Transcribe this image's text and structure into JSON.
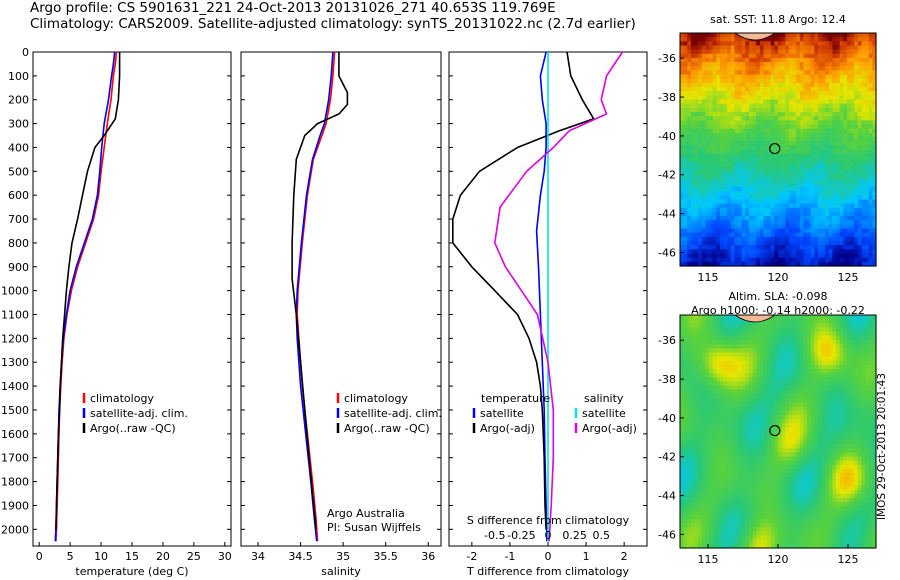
{
  "header": {
    "line1": "Argo profile: CS 5901631_221 24-Oct-2013 20131026_271 40.653S 119.769E",
    "line2": "Climatology: CARS2009. Satellite-adjusted climatology: synTS_20131022.nc (2.7d earlier)"
  },
  "colors": {
    "climatology": "#ff0000",
    "satellite": "#0000ff",
    "argo": "#000000",
    "sat_salinity": "#00e5e5",
    "argo_salinity": "#e000e0"
  },
  "chart_data": [
    {
      "type": "line",
      "panel": "temperature",
      "xlabel": "temperature (deg C)",
      "xlim": [
        -1,
        31
      ],
      "xticks": [
        0,
        5,
        10,
        15,
        20,
        25,
        30
      ],
      "ylim": [
        2070,
        0
      ],
      "yticks": [
        0,
        100,
        200,
        300,
        400,
        500,
        600,
        700,
        800,
        900,
        1000,
        1100,
        1200,
        1300,
        1400,
        1500,
        1600,
        1700,
        1800,
        1900,
        2000
      ],
      "legend": [
        "climatology",
        "satellite-adj. clim.",
        "Argo(..raw -QC)"
      ],
      "series": [
        {
          "name": "climatology",
          "color": "#ff0000",
          "points": [
            [
              12.5,
              0
            ],
            [
              12.3,
              50
            ],
            [
              12.0,
              100
            ],
            [
              11.6,
              200
            ],
            [
              11.0,
              300
            ],
            [
              10.5,
              400
            ],
            [
              10.0,
              500
            ],
            [
              9.6,
              600
            ],
            [
              8.8,
              700
            ],
            [
              7.5,
              800
            ],
            [
              6.2,
              900
            ],
            [
              5.2,
              1000
            ],
            [
              4.5,
              1100
            ],
            [
              4.0,
              1200
            ],
            [
              3.7,
              1300
            ],
            [
              3.5,
              1400
            ],
            [
              3.3,
              1500
            ],
            [
              3.2,
              1600
            ],
            [
              3.0,
              1800
            ],
            [
              2.8,
              2000
            ],
            [
              2.7,
              2050
            ]
          ]
        },
        {
          "name": "satellite-adj. clim.",
          "color": "#0000ff",
          "points": [
            [
              12.2,
              0
            ],
            [
              12.0,
              50
            ],
            [
              11.7,
              100
            ],
            [
              11.2,
              200
            ],
            [
              10.5,
              300
            ],
            [
              10.1,
              400
            ],
            [
              9.8,
              500
            ],
            [
              9.4,
              600
            ],
            [
              8.6,
              700
            ],
            [
              7.3,
              800
            ],
            [
              6.0,
              900
            ],
            [
              5.0,
              1000
            ],
            [
              4.4,
              1100
            ],
            [
              3.9,
              1200
            ],
            [
              3.6,
              1300
            ],
            [
              3.4,
              1400
            ],
            [
              3.2,
              1500
            ],
            [
              3.1,
              1600
            ],
            [
              2.9,
              1800
            ],
            [
              2.7,
              2000
            ],
            [
              2.6,
              2050
            ]
          ]
        },
        {
          "name": "Argo(..raw -QC)",
          "color": "#000000",
          "points": [
            [
              13.0,
              0
            ],
            [
              13.0,
              100
            ],
            [
              12.8,
              200
            ],
            [
              12.3,
              280
            ],
            [
              10.5,
              350
            ],
            [
              9.0,
              400
            ],
            [
              7.8,
              500
            ],
            [
              7.0,
              600
            ],
            [
              6.2,
              700
            ],
            [
              5.3,
              800
            ],
            [
              4.8,
              900
            ],
            [
              4.4,
              1000
            ],
            [
              4.1,
              1100
            ],
            [
              3.8,
              1200
            ],
            [
              3.6,
              1300
            ],
            [
              3.4,
              1400
            ],
            [
              3.3,
              1500
            ],
            [
              3.1,
              1600
            ],
            [
              3.0,
              1700
            ],
            [
              2.9,
              1800
            ],
            [
              2.8,
              1900
            ],
            [
              2.7,
              2000
            ]
          ]
        }
      ]
    },
    {
      "type": "line",
      "panel": "salinity",
      "xlabel": "salinity",
      "xlim": [
        33.8,
        36.15
      ],
      "xticks": [
        34,
        34.5,
        35,
        35.5,
        36
      ],
      "xtick_labels": [
        "34",
        "34.5",
        "35",
        "35.5",
        "36"
      ],
      "ylim": [
        2070,
        0
      ],
      "legend": [
        "climatology",
        "satellite-adj. clim.",
        "Argo(..raw -QC)"
      ],
      "annotation": [
        "Argo Australia",
        "PI: Susan Wijffels"
      ],
      "series": [
        {
          "name": "climatology",
          "color": "#ff0000",
          "points": [
            [
              34.9,
              0
            ],
            [
              34.88,
              100
            ],
            [
              34.85,
              200
            ],
            [
              34.8,
              300
            ],
            [
              34.75,
              350
            ],
            [
              34.65,
              450
            ],
            [
              34.58,
              600
            ],
            [
              34.52,
              800
            ],
            [
              34.47,
              1000
            ],
            [
              34.46,
              1100
            ],
            [
              34.48,
              1200
            ],
            [
              34.52,
              1400
            ],
            [
              34.58,
              1600
            ],
            [
              34.64,
              1800
            ],
            [
              34.68,
              1950
            ],
            [
              34.7,
              2050
            ]
          ]
        },
        {
          "name": "satellite-adj. clim.",
          "color": "#0000ff",
          "points": [
            [
              34.88,
              0
            ],
            [
              34.86,
              100
            ],
            [
              34.83,
              200
            ],
            [
              34.78,
              300
            ],
            [
              34.73,
              350
            ],
            [
              34.64,
              450
            ],
            [
              34.57,
              600
            ],
            [
              34.51,
              800
            ],
            [
              34.46,
              1000
            ],
            [
              34.45,
              1100
            ],
            [
              34.46,
              1200
            ],
            [
              34.5,
              1400
            ],
            [
              34.56,
              1600
            ],
            [
              34.62,
              1800
            ],
            [
              34.66,
              1950
            ],
            [
              34.69,
              2050
            ]
          ]
        },
        {
          "name": "Argo(..raw -QC)",
          "color": "#000000",
          "points": [
            [
              34.95,
              0
            ],
            [
              34.95,
              100
            ],
            [
              35.05,
              170
            ],
            [
              35.05,
              220
            ],
            [
              34.95,
              260
            ],
            [
              34.7,
              300
            ],
            [
              34.55,
              350
            ],
            [
              34.45,
              450
            ],
            [
              34.42,
              600
            ],
            [
              34.4,
              800
            ],
            [
              34.4,
              950
            ],
            [
              34.45,
              1100
            ],
            [
              34.5,
              1300
            ],
            [
              34.55,
              1500
            ],
            [
              34.6,
              1700
            ],
            [
              34.64,
              1850
            ],
            [
              34.67,
              1950
            ],
            [
              34.68,
              2000
            ]
          ]
        }
      ]
    },
    {
      "type": "line",
      "panel": "difference",
      "xlabel": "T difference from climatology",
      "xlim": [
        -2.6,
        2.6
      ],
      "xticks": [
        -2,
        -1,
        0,
        1,
        2
      ],
      "top_label": "S difference from climatology",
      "s_xticks": [
        -0.5,
        -0.25,
        0,
        0.25,
        0.5
      ],
      "s_xtick_labels": [
        "-0.5",
        "-0.25",
        "0",
        "0.25",
        "0.5"
      ],
      "ylim": [
        2070,
        0
      ],
      "legend": {
        "temperature": [
          "satellite",
          "Argo(-adj)"
        ],
        "salinity": [
          "satellite",
          "Argo(-adj)"
        ],
        "headers": [
          "temperature",
          "salinity"
        ]
      },
      "series": [
        {
          "name": "satellite",
          "group": "temperature",
          "color": "#0000ff",
          "points": [
            [
              -0.05,
              0
            ],
            [
              -0.2,
              100
            ],
            [
              -0.15,
              200
            ],
            [
              -0.05,
              300
            ],
            [
              -0.05,
              400
            ],
            [
              -0.1,
              500
            ],
            [
              -0.2,
              600
            ],
            [
              -0.3,
              750
            ],
            [
              -0.25,
              900
            ],
            [
              -0.2,
              1100
            ],
            [
              -0.15,
              1300
            ],
            [
              -0.1,
              1500
            ],
            [
              -0.08,
              1700
            ],
            [
              -0.05,
              1900
            ],
            [
              -0.03,
              2050
            ]
          ]
        },
        {
          "name": "Argo(-adj)",
          "group": "temperature",
          "color": "#000000",
          "points": [
            [
              0.5,
              0
            ],
            [
              0.6,
              100
            ],
            [
              0.9,
              200
            ],
            [
              1.2,
              280
            ],
            [
              0.3,
              330
            ],
            [
              -0.8,
              400
            ],
            [
              -1.8,
              500
            ],
            [
              -2.3,
              600
            ],
            [
              -2.5,
              700
            ],
            [
              -2.5,
              800
            ],
            [
              -2.0,
              900
            ],
            [
              -1.4,
              1000
            ],
            [
              -0.8,
              1100
            ],
            [
              -0.5,
              1200
            ],
            [
              -0.3,
              1300
            ],
            [
              -0.2,
              1400
            ],
            [
              -0.15,
              1500
            ],
            [
              -0.1,
              1700
            ],
            [
              -0.08,
              1900
            ],
            [
              -0.05,
              2000
            ]
          ]
        },
        {
          "name": "satellite",
          "group": "salinity",
          "color": "#00e5e5",
          "points": [
            [
              0,
              0
            ],
            [
              0,
              100
            ],
            [
              0,
              300
            ],
            [
              0,
              500
            ],
            [
              0,
              700
            ],
            [
              0,
              900
            ],
            [
              0,
              1100
            ],
            [
              0,
              1300
            ],
            [
              0,
              1500
            ],
            [
              0,
              1700
            ],
            [
              0,
              1900
            ],
            [
              0,
              2050
            ]
          ]
        },
        {
          "name": "Argo(-adj)",
          "group": "salinity",
          "color": "#e000e0",
          "points": [
            [
              0.7,
              0
            ],
            [
              0.55,
              100
            ],
            [
              0.5,
              200
            ],
            [
              0.55,
              260
            ],
            [
              0.2,
              330
            ],
            [
              0.05,
              400
            ],
            [
              -0.2,
              500
            ],
            [
              -0.45,
              650
            ],
            [
              -0.5,
              800
            ],
            [
              -0.4,
              900
            ],
            [
              -0.25,
              1000
            ],
            [
              -0.1,
              1100
            ],
            [
              0,
              1300
            ],
            [
              0.05,
              1500
            ],
            [
              0.05,
              1700
            ],
            [
              0.03,
              1900
            ],
            [
              0.01,
              2050
            ]
          ]
        }
      ]
    },
    {
      "type": "heatmap",
      "panel": "sst_map",
      "title": "sat. SST: 11.8 Argo: 12.4",
      "xlim": [
        113,
        127
      ],
      "ylim": [
        -46.7,
        -34.7
      ],
      "xticks": [
        115,
        120,
        125
      ],
      "yticks": [
        -36,
        -38,
        -40,
        -42,
        -44,
        -46
      ],
      "marker": {
        "lon": 119.769,
        "lat": -40.653
      }
    },
    {
      "type": "heatmap",
      "panel": "sla_map",
      "title_line1": "Altim. SLA: -0.098",
      "title_line2": "Argo h1000: -0.14 h2000: -0.22",
      "xlim": [
        113,
        127
      ],
      "ylim": [
        -46.7,
        -34.7
      ],
      "xticks": [
        115,
        120,
        125
      ],
      "yticks": [
        -36,
        -38,
        -40,
        -42,
        -44,
        -46
      ],
      "marker": {
        "lon": 119.769,
        "lat": -40.653
      }
    }
  ],
  "footer": {
    "stamp": "IMOS 29-Oct-2013 20:01:43"
  }
}
